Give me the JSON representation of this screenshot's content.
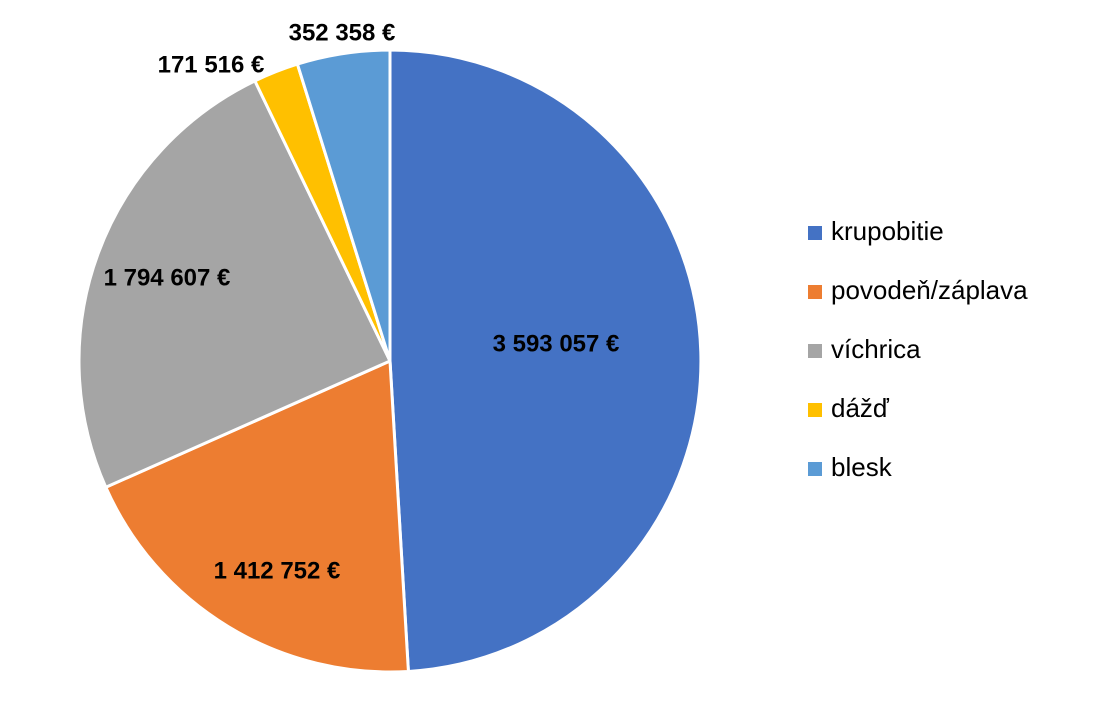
{
  "chart_data": {
    "type": "pie",
    "categories": [
      "krupobitie",
      "povodeň/záplava",
      "víchrica",
      "dážď",
      "blesk"
    ],
    "values": [
      3593057,
      1412752,
      1794607,
      171516,
      352358
    ],
    "data_labels": [
      "3 593 057 €",
      "1 412 752 €",
      "1 794 607 €",
      "171 516 €",
      "352 358 €"
    ],
    "colors": [
      "#4472C4",
      "#ED7D31",
      "#A5A5A5",
      "#FFC000",
      "#5B9BD5"
    ],
    "legend_position": "right",
    "start_angle": "top",
    "direction": "clockwise"
  }
}
